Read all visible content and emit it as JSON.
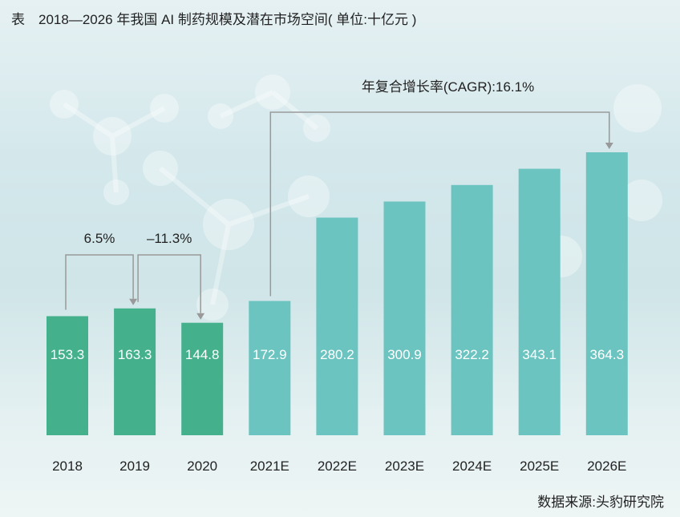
{
  "title": "表　2018—2026 年我国 AI 制药规模及潜在市场空间( 单位:十亿元 )",
  "source": "数据来源:头豹研究院",
  "chart_data": {
    "type": "bar",
    "title": "表　2018—2026 年我国 AI 制药规模及潜在市场空间( 单位:十亿元 )",
    "categories": [
      "2018",
      "2019",
      "2020",
      "2021E",
      "2022E",
      "2023E",
      "2024E",
      "2025E",
      "2026E"
    ],
    "values": [
      153.3,
      163.3,
      144.8,
      172.9,
      280.2,
      300.9,
      322.2,
      343.1,
      364.3
    ],
    "value_labels": [
      "153.3",
      "163.3",
      "144.8",
      "172.9",
      "280.2",
      "300.9",
      "322.2",
      "343.1",
      "364.3"
    ],
    "ylim": [
      0,
      375
    ],
    "grid": false,
    "colors": {
      "actual": "#45b08c",
      "estimate": "#6cc4c0",
      "connector": "#999999"
    },
    "annotations": [
      {
        "text": "6.5%",
        "from": "2018",
        "to": "2019"
      },
      {
        "text": "–11.3%",
        "from": "2019",
        "to": "2020"
      },
      {
        "text": "年复合增长率(CAGR):16.1%",
        "from": "2021E",
        "to": "2026E"
      }
    ]
  }
}
